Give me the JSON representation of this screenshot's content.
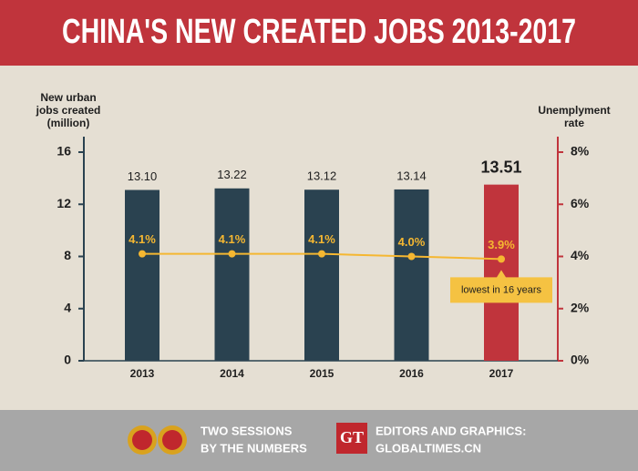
{
  "chart_data": {
    "type": "bar",
    "title": "CHINA'S NEW CREATED JOBS 2013-2017",
    "ylabel": [
      "New urban",
      "jobs created",
      "(million)"
    ],
    "y2label": [
      "Unemplyment",
      "rate"
    ],
    "categories": [
      "2013",
      "2014",
      "2015",
      "2016",
      "2017"
    ],
    "series": [
      {
        "type": "bar",
        "colors": [
          "#2a4250",
          "#2a4250",
          "#2a4250",
          "#2a4250",
          "#c0343c"
        ],
        "values": [
          13.1,
          13.22,
          13.12,
          13.14,
          13.51
        ],
        "value_labels": [
          "13.10",
          "13.22",
          "13.12",
          "13.14",
          "13.51"
        ]
      },
      {
        "type": "line",
        "axis": "y2",
        "color": "#f5b731",
        "values": [
          4.1,
          4.1,
          4.1,
          4.0,
          3.9
        ],
        "value_labels": [
          "4.1%",
          "4.1%",
          "4.1%",
          "4.0%",
          "3.9%"
        ]
      }
    ],
    "annotation": "lowest in 16 years",
    "ylim": [
      0,
      16
    ],
    "yticks": [
      0,
      4,
      8,
      12,
      16
    ],
    "y2lim": [
      0,
      8
    ],
    "y2ticks": [
      {
        "value": 0,
        "label": "0%"
      },
      {
        "value": 2,
        "label": "2%"
      },
      {
        "value": 4,
        "label": "4%"
      },
      {
        "value": 6,
        "label": "6%"
      },
      {
        "value": 8,
        "label": "8%"
      }
    ],
    "grid": false
  },
  "footer": {
    "left": [
      "TWO SESSIONS",
      "BY THE NUMBERS"
    ],
    "logo": "GT",
    "right": [
      "EDITORS AND GRAPHICS:",
      "GLOBALTIMES.CN"
    ]
  }
}
